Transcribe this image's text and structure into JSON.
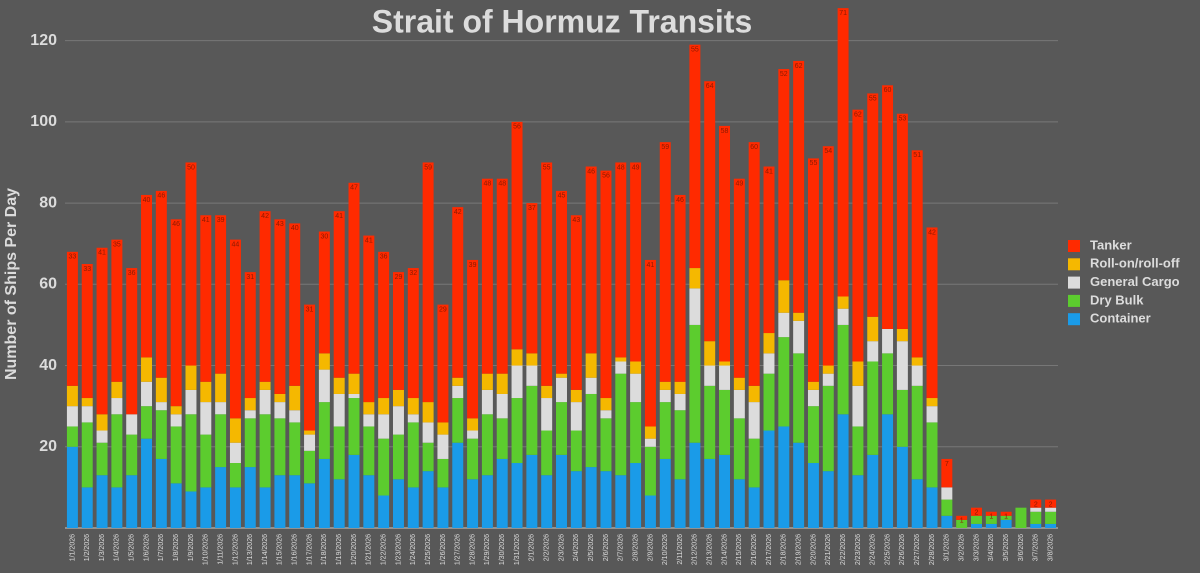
{
  "chart_data": {
    "type": "stacked_bar",
    "title": "Strait of Hormuz Transits",
    "y_label": "Number of Ships Per Day",
    "categories": [
      "1/1/2026",
      "1/2/2026",
      "1/3/2026",
      "1/4/2026",
      "1/5/2026",
      "1/6/2026",
      "1/7/2026",
      "1/8/2026",
      "1/9/2026",
      "1/10/2026",
      "1/11/2026",
      "1/12/2026",
      "1/13/2026",
      "1/14/2026",
      "1/15/2026",
      "1/16/2026",
      "1/17/2026",
      "1/18/2026",
      "1/19/2026",
      "1/20/2026",
      "1/21/2026",
      "1/22/2026",
      "1/23/2026",
      "1/24/2026",
      "1/25/2026",
      "1/26/2026",
      "1/27/2026",
      "1/28/2026",
      "1/29/2026",
      "1/30/2026",
      "1/31/2026",
      "2/1/2026",
      "2/2/2026",
      "2/3/2026",
      "2/4/2026",
      "2/5/2026",
      "2/6/2026",
      "2/7/2026",
      "2/8/2026",
      "2/9/2026",
      "2/10/2026",
      "2/11/2026",
      "2/12/2026",
      "2/13/2026",
      "2/14/2026",
      "2/15/2026",
      "2/16/2026",
      "2/17/2026",
      "2/18/2026",
      "2/19/2026",
      "2/20/2026",
      "2/21/2026",
      "2/22/2026",
      "2/23/2026",
      "2/24/2026",
      "2/25/2026",
      "2/26/2026",
      "2/27/2026",
      "2/28/2026",
      "3/1/2026",
      "3/2/2026",
      "3/3/2026",
      "3/4/2026",
      "3/5/2026",
      "3/6/2026",
      "3/7/2026",
      "3/8/2026"
    ],
    "series": [
      {
        "name": "Container",
        "color": "#1a9be8",
        "values": [
          20,
          10,
          13,
          10,
          13,
          22,
          17,
          11,
          9,
          10,
          15,
          10,
          15,
          10,
          13,
          13,
          11,
          17,
          12,
          18,
          13,
          8,
          12,
          10,
          14,
          10,
          21,
          12,
          13,
          17,
          16,
          18,
          13,
          18,
          14,
          15,
          14,
          13,
          16,
          8,
          17,
          12,
          21,
          17,
          18,
          12,
          10,
          24,
          25,
          21,
          16,
          14,
          28,
          13,
          18,
          28,
          20,
          12,
          10,
          3,
          0,
          1,
          1,
          2,
          0,
          1,
          1
        ]
      },
      {
        "name": "Dry Bulk",
        "color": "#5ccc2e",
        "values": [
          5,
          16,
          8,
          18,
          10,
          8,
          12,
          14,
          19,
          13,
          13,
          6,
          12,
          18,
          14,
          13,
          8,
          14,
          13,
          14,
          12,
          14,
          11,
          16,
          7,
          7,
          11,
          10,
          15,
          10,
          16,
          17,
          11,
          13,
          10,
          18,
          13,
          25,
          15,
          12,
          14,
          17,
          29,
          18,
          16,
          15,
          12,
          14,
          22,
          22,
          14,
          21,
          22,
          12,
          23,
          15,
          14,
          23,
          16,
          4,
          2,
          2,
          2,
          1,
          5,
          3,
          3
        ]
      },
      {
        "name": "General Cargo",
        "color": "#dcdcdc",
        "values": [
          5,
          4,
          3,
          4,
          5,
          6,
          2,
          3,
          6,
          8,
          3,
          5,
          2,
          6,
          4,
          3,
          4,
          8,
          8,
          1,
          3,
          6,
          7,
          2,
          5,
          6,
          3,
          2,
          6,
          6,
          8,
          5,
          8,
          6,
          7,
          4,
          2,
          3,
          7,
          2,
          3,
          4,
          9,
          5,
          6,
          7,
          9,
          5,
          6,
          8,
          4,
          3,
          4,
          10,
          5,
          6,
          12,
          5,
          4,
          3,
          0,
          0,
          0,
          0,
          0,
          1,
          1
        ]
      },
      {
        "name": "Roll-on/roll-off",
        "color": "#f5b800",
        "values": [
          5,
          2,
          4,
          4,
          0,
          6,
          6,
          2,
          6,
          5,
          7,
          6,
          3,
          2,
          2,
          6,
          1,
          4,
          4,
          5,
          3,
          4,
          4,
          4,
          5,
          3,
          2,
          3,
          4,
          5,
          4,
          3,
          3,
          1,
          3,
          6,
          3,
          1,
          3,
          3,
          2,
          3,
          5,
          6,
          1,
          3,
          4,
          5,
          8,
          2,
          2,
          2,
          3,
          6,
          6,
          0,
          3,
          2,
          2,
          0,
          0,
          0,
          0,
          0,
          0,
          0,
          0
        ]
      },
      {
        "name": "Tanker",
        "color": "#ff2a00",
        "values": [
          33,
          33,
          41,
          35,
          36,
          40,
          46,
          46,
          50,
          41,
          39,
          44,
          31,
          42,
          43,
          40,
          31,
          30,
          41,
          47,
          41,
          36,
          29,
          32,
          59,
          29,
          42,
          39,
          48,
          48,
          56,
          37,
          55,
          45,
          43,
          46,
          56,
          48,
          49,
          41,
          59,
          46,
          55,
          64,
          58,
          49,
          60,
          41,
          52,
          62,
          55,
          54,
          71,
          62,
          55,
          60,
          53,
          51,
          42,
          7,
          1,
          2,
          1,
          1,
          0,
          2,
          2
        ]
      }
    ],
    "ylim": [
      0,
      130
    ],
    "yticks": [
      20,
      40,
      60,
      80,
      100,
      120
    ],
    "grid": true
  }
}
